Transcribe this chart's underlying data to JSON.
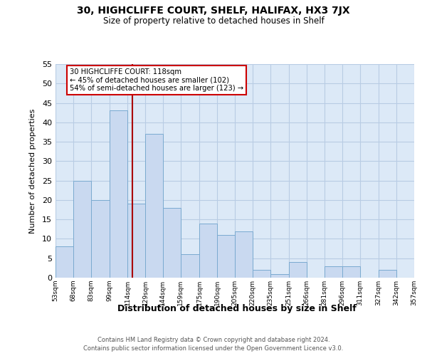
{
  "title": "30, HIGHCLIFFE COURT, SHELF, HALIFAX, HX3 7JX",
  "subtitle": "Size of property relative to detached houses in Shelf",
  "xlabel": "Distribution of detached houses by size in Shelf",
  "ylabel": "Number of detached properties",
  "bin_edges": [
    53,
    68,
    83,
    99,
    114,
    129,
    144,
    159,
    175,
    190,
    205,
    220,
    235,
    251,
    266,
    281,
    296,
    311,
    327,
    342,
    357
  ],
  "bar_heights": [
    8,
    25,
    20,
    43,
    19,
    37,
    18,
    6,
    14,
    11,
    12,
    2,
    1,
    4,
    0,
    3,
    3,
    0,
    2,
    0
  ],
  "bar_color": "#c9d9f0",
  "bar_edge_color": "#7aaad0",
  "grid_color": "#b8cce4",
  "plot_bg_color": "#dce9f7",
  "fig_bg_color": "#ffffff",
  "property_line_x": 118,
  "annotation_title": "30 HIGHCLIFFE COURT: 118sqm",
  "annotation_line1": "← 45% of detached houses are smaller (102)",
  "annotation_line2": "54% of semi-detached houses are larger (123) →",
  "annotation_box_facecolor": "#ffffff",
  "annotation_box_edgecolor": "#cc0000",
  "property_line_color": "#aa0000",
  "ylim": [
    0,
    55
  ],
  "yticks": [
    0,
    5,
    10,
    15,
    20,
    25,
    30,
    35,
    40,
    45,
    50,
    55
  ],
  "footnote1": "Contains HM Land Registry data © Crown copyright and database right 2024.",
  "footnote2": "Contains public sector information licensed under the Open Government Licence v3.0."
}
